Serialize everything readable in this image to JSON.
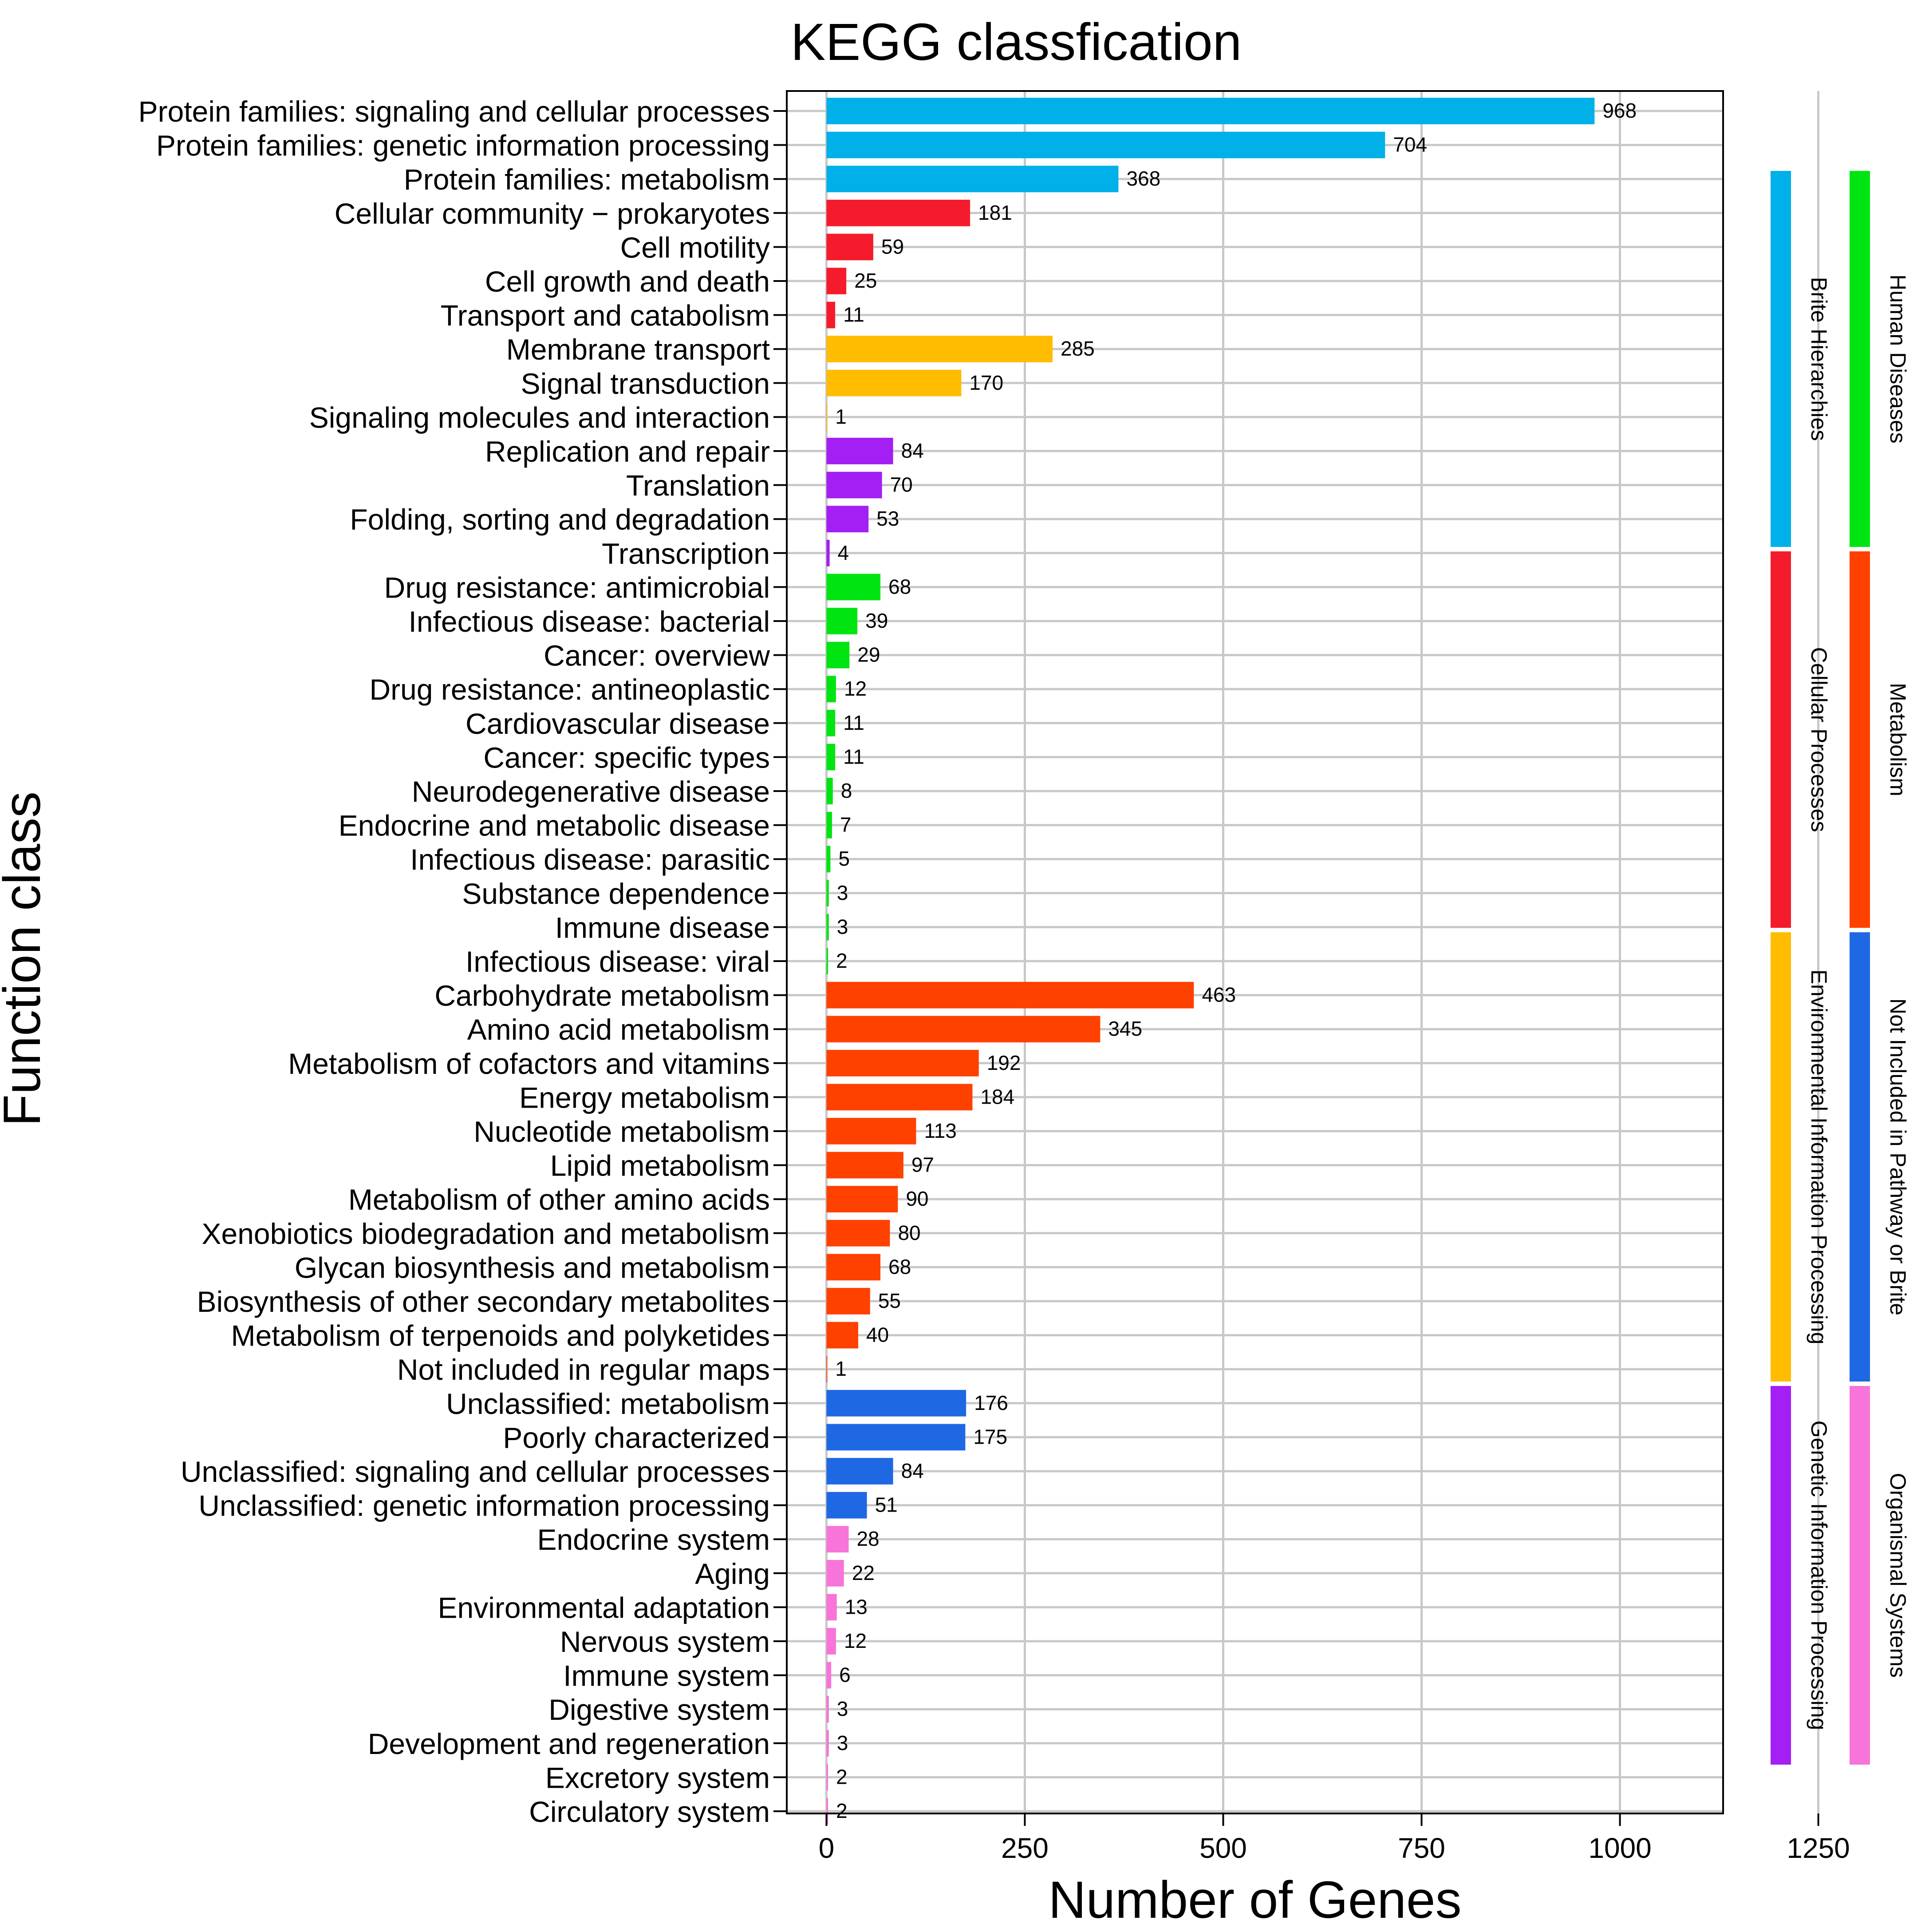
{
  "chart_data": {
    "type": "bar",
    "orientation": "horizontal",
    "title": "KEGG classfication",
    "xlabel": "Number of Genes",
    "ylabel": "Function class",
    "grid": true,
    "x_tick_labels": [
      "0",
      "250",
      "500",
      "750",
      "1000",
      "1250"
    ],
    "x_tick_values": [
      0,
      250,
      500,
      750,
      1000,
      1250
    ],
    "xlim": [
      -50,
      1130
    ],
    "groups": [
      {
        "name": "Brite Hierarchies",
        "color": "#00b0e8"
      },
      {
        "name": "Cellular Processes",
        "color": "#f41c2c"
      },
      {
        "name": "Environmental Information Processing",
        "color": "#ffbc00"
      },
      {
        "name": "Genetic Information Processing",
        "color": "#a31ff4"
      },
      {
        "name": "Human Diseases",
        "color": "#00e512"
      },
      {
        "name": "Metabolism",
        "color": "#ff4100"
      },
      {
        "name": "Not Included in Pathway or Brite",
        "color": "#1f68e3"
      },
      {
        "name": "Organismal Systems",
        "color": "#f774d8"
      }
    ],
    "bars": [
      {
        "label": "Protein families: signaling and cellular processes",
        "value": 968,
        "group": 0
      },
      {
        "label": "Protein families: genetic information processing",
        "value": 704,
        "group": 0
      },
      {
        "label": "Protein families: metabolism",
        "value": 368,
        "group": 0
      },
      {
        "label": "Cellular community − prokaryotes",
        "value": 181,
        "group": 1
      },
      {
        "label": "Cell motility",
        "value": 59,
        "group": 1
      },
      {
        "label": "Cell growth and death",
        "value": 25,
        "group": 1
      },
      {
        "label": "Transport and catabolism",
        "value": 11,
        "group": 1
      },
      {
        "label": "Membrane transport",
        "value": 285,
        "group": 2
      },
      {
        "label": "Signal transduction",
        "value": 170,
        "group": 2
      },
      {
        "label": "Signaling molecules and interaction",
        "value": 1,
        "group": 2
      },
      {
        "label": "Replication and repair",
        "value": 84,
        "group": 3
      },
      {
        "label": "Translation",
        "value": 70,
        "group": 3
      },
      {
        "label": "Folding, sorting and degradation",
        "value": 53,
        "group": 3
      },
      {
        "label": "Transcription",
        "value": 4,
        "group": 3
      },
      {
        "label": "Drug resistance: antimicrobial",
        "value": 68,
        "group": 4
      },
      {
        "label": "Infectious disease: bacterial",
        "value": 39,
        "group": 4
      },
      {
        "label": "Cancer: overview",
        "value": 29,
        "group": 4
      },
      {
        "label": "Drug resistance: antineoplastic",
        "value": 12,
        "group": 4
      },
      {
        "label": "Cardiovascular disease",
        "value": 11,
        "group": 4
      },
      {
        "label": "Cancer: specific types",
        "value": 11,
        "group": 4
      },
      {
        "label": "Neurodegenerative disease",
        "value": 8,
        "group": 4
      },
      {
        "label": "Endocrine and metabolic disease",
        "value": 7,
        "group": 4
      },
      {
        "label": "Infectious disease: parasitic",
        "value": 5,
        "group": 4
      },
      {
        "label": "Substance dependence",
        "value": 3,
        "group": 4
      },
      {
        "label": "Immune disease",
        "value": 3,
        "group": 4
      },
      {
        "label": "Infectious disease: viral",
        "value": 2,
        "group": 4
      },
      {
        "label": "Carbohydrate metabolism",
        "value": 463,
        "group": 5
      },
      {
        "label": "Amino acid metabolism",
        "value": 345,
        "group": 5
      },
      {
        "label": "Metabolism of cofactors and vitamins",
        "value": 192,
        "group": 5
      },
      {
        "label": "Energy metabolism",
        "value": 184,
        "group": 5
      },
      {
        "label": "Nucleotide metabolism",
        "value": 113,
        "group": 5
      },
      {
        "label": "Lipid metabolism",
        "value": 97,
        "group": 5
      },
      {
        "label": "Metabolism of other amino acids",
        "value": 90,
        "group": 5
      },
      {
        "label": "Xenobiotics biodegradation and metabolism",
        "value": 80,
        "group": 5
      },
      {
        "label": "Glycan biosynthesis and metabolism",
        "value": 68,
        "group": 5
      },
      {
        "label": "Biosynthesis of other secondary metabolites",
        "value": 55,
        "group": 5
      },
      {
        "label": "Metabolism of terpenoids and polyketides",
        "value": 40,
        "group": 5
      },
      {
        "label": "Not included in regular maps",
        "value": 1,
        "group": 5
      },
      {
        "label": "Unclassified: metabolism",
        "value": 176,
        "group": 6
      },
      {
        "label": "Poorly characterized",
        "value": 175,
        "group": 6
      },
      {
        "label": "Unclassified: signaling and cellular processes",
        "value": 84,
        "group": 6
      },
      {
        "label": "Unclassified: genetic information processing",
        "value": 51,
        "group": 6
      },
      {
        "label": "Endocrine system",
        "value": 28,
        "group": 7
      },
      {
        "label": "Aging",
        "value": 22,
        "group": 7
      },
      {
        "label": "Environmental adaptation",
        "value": 13,
        "group": 7
      },
      {
        "label": "Nervous system",
        "value": 12,
        "group": 7
      },
      {
        "label": "Immune system",
        "value": 6,
        "group": 7
      },
      {
        "label": "Digestive system",
        "value": 3,
        "group": 7
      },
      {
        "label": "Development and regeneration",
        "value": 3,
        "group": 7
      },
      {
        "label": "Excretory system",
        "value": 2,
        "group": 7
      },
      {
        "label": "Circulatory system",
        "value": 2,
        "group": 7
      }
    ]
  }
}
